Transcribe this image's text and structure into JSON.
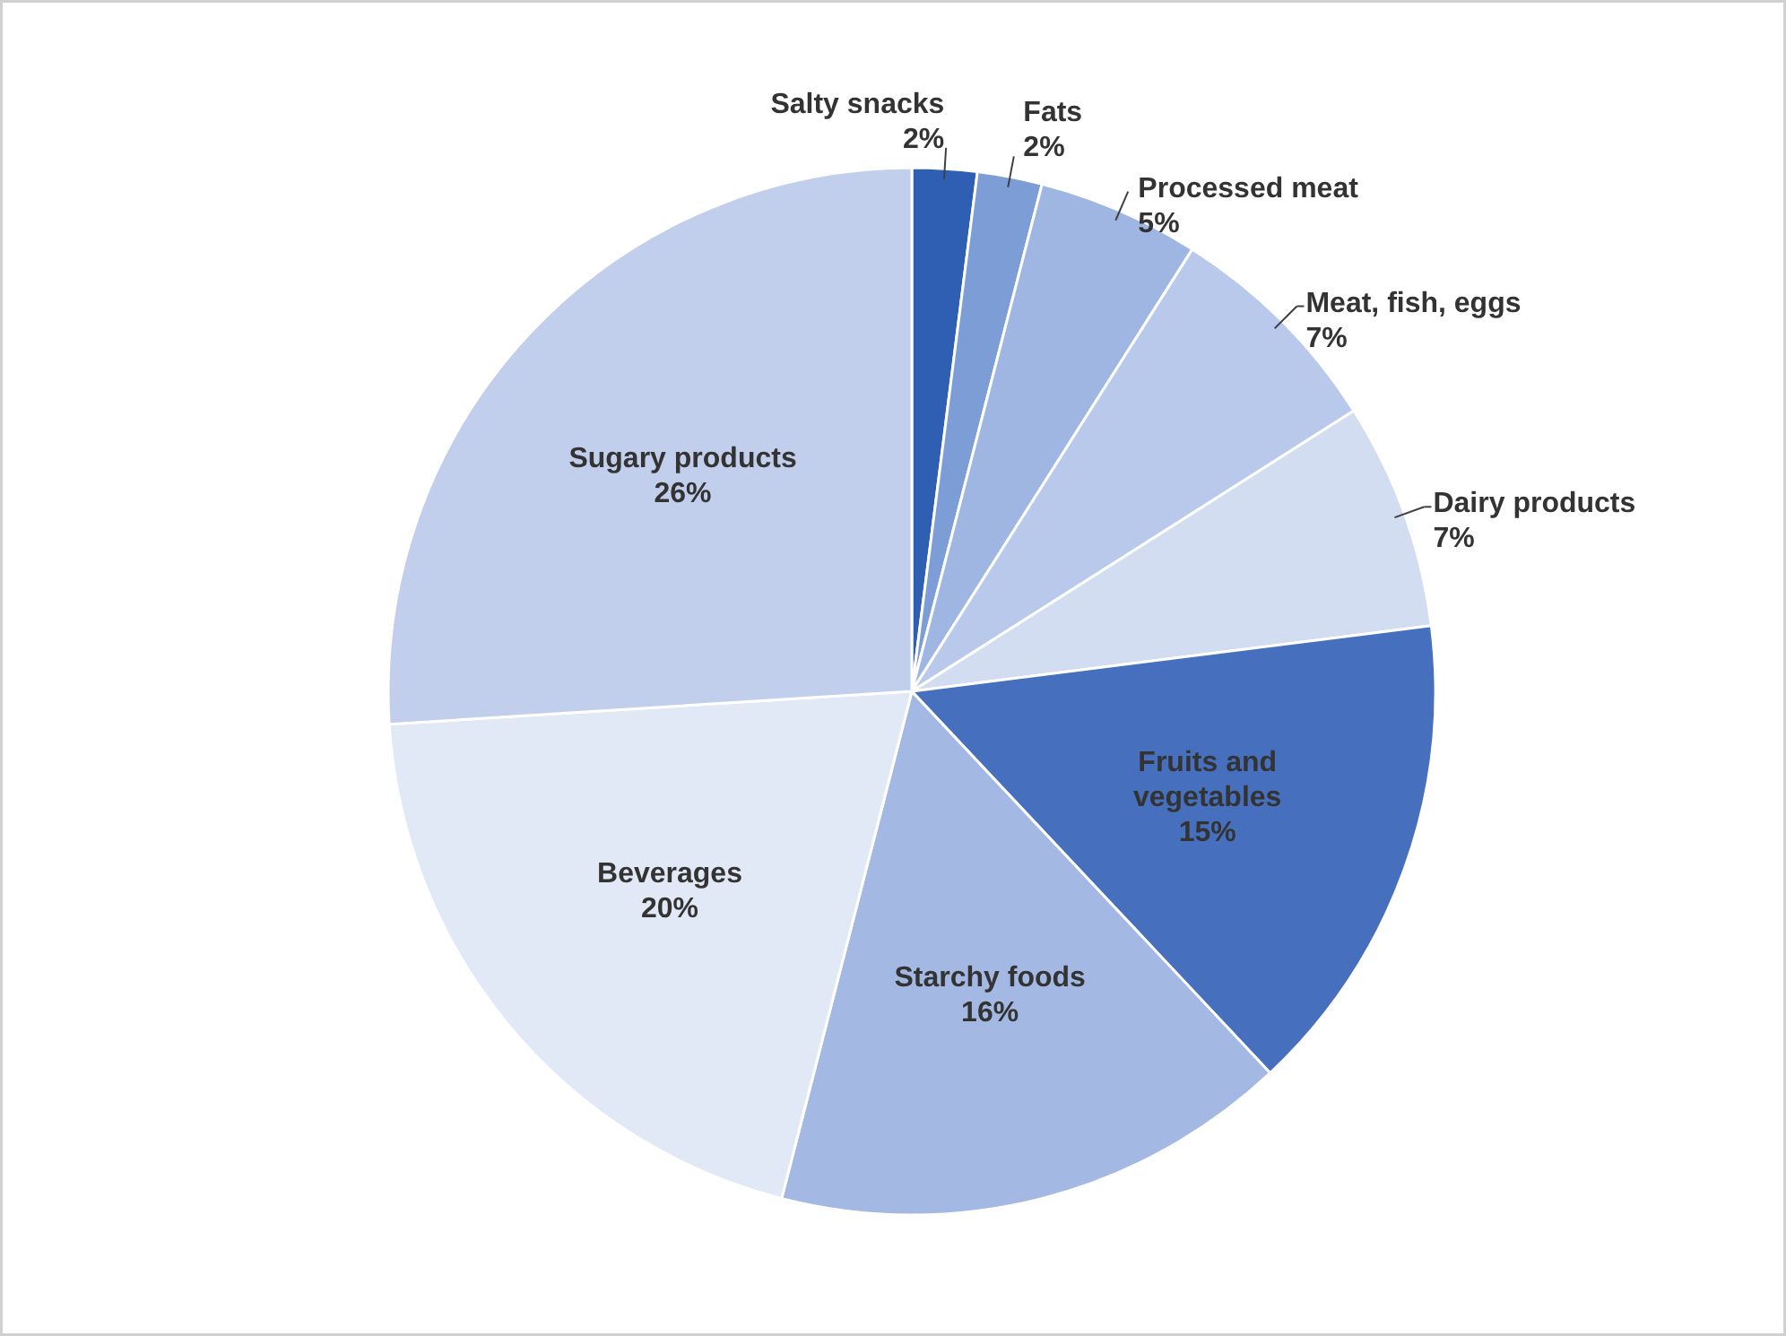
{
  "chart_data": {
    "type": "pie",
    "categories": [
      "Salty snacks",
      "Fats",
      "Processed meat",
      "Meat, fish, eggs",
      "Dairy products",
      "Fruits and vegetables",
      "Starchy foods",
      "Beverages",
      "Sugary products"
    ],
    "values": [
      2,
      2,
      5,
      7,
      7,
      15,
      16,
      20,
      26
    ],
    "value_labels": [
      "2%",
      "2%",
      "5%",
      "7%",
      "7%",
      "15%",
      "16%",
      "20%",
      "26%"
    ],
    "colors": [
      "#2f5fb3",
      "#7d9dd6",
      "#9fb6e3",
      "#b8c9ec",
      "#d2ddf2",
      "#4670be",
      "#a3b8e2",
      "#e2e9f6",
      "#c1cfec"
    ]
  }
}
